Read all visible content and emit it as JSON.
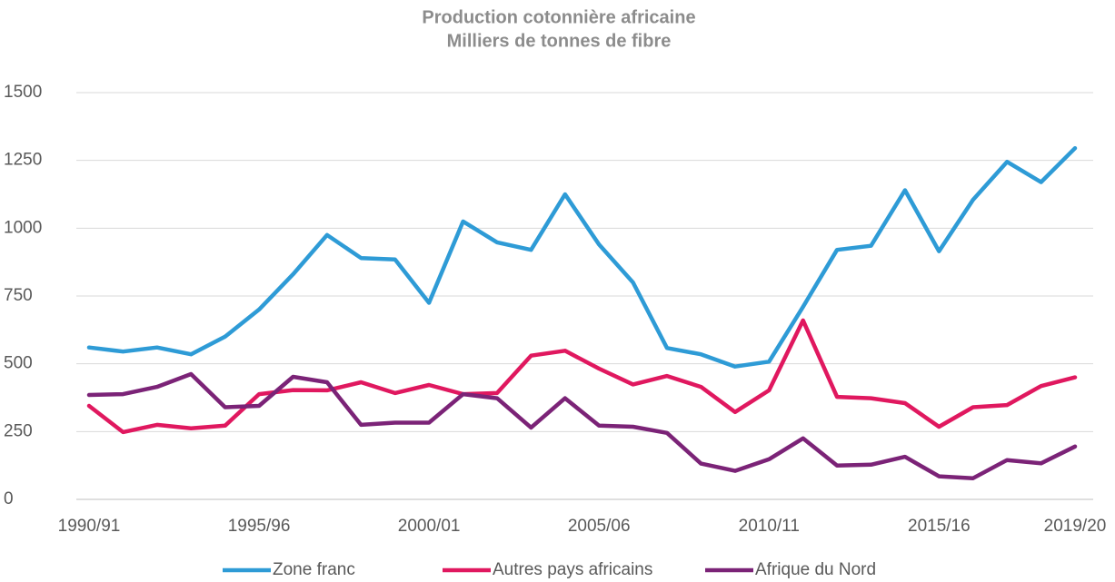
{
  "chart_data": {
    "type": "line",
    "title": "Production cotonnière africaine",
    "subtitle": "Milliers de tonnes de fibre",
    "categories": [
      "1990/91",
      null,
      null,
      null,
      null,
      "1995/96",
      null,
      null,
      null,
      null,
      "2000/01",
      null,
      null,
      null,
      null,
      "2005/06",
      null,
      null,
      null,
      null,
      "2010/11",
      null,
      null,
      null,
      null,
      "2015/16",
      null,
      null,
      null,
      "2019/20"
    ],
    "series": [
      {
        "name": "Zone franc",
        "color": "#2e9bd6",
        "values": [
          560,
          545,
          560,
          535,
          600,
          700,
          830,
          975,
          890,
          885,
          725,
          1025,
          948,
          920,
          1125,
          940,
          800,
          558,
          535,
          490,
          508,
          710,
          920,
          935,
          1140,
          915,
          1105,
          1245,
          1170,
          1295
        ]
      },
      {
        "name": "Autres pays africains",
        "color": "#e0185f",
        "values": [
          345,
          248,
          275,
          262,
          272,
          388,
          403,
          402,
          432,
          392,
          422,
          388,
          392,
          530,
          548,
          482,
          424,
          455,
          415,
          322,
          402,
          660,
          378,
          373,
          355,
          268,
          340,
          348,
          418,
          450
        ]
      },
      {
        "name": "Afrique du Nord",
        "color": "#7b2377",
        "values": [
          385,
          388,
          415,
          462,
          340,
          345,
          452,
          432,
          275,
          283,
          283,
          388,
          373,
          265,
          373,
          272,
          268,
          245,
          132,
          105,
          148,
          225,
          125,
          128,
          157,
          85,
          78,
          145,
          133,
          195
        ]
      }
    ],
    "ylim": [
      0,
      1500
    ],
    "yticks": [
      0,
      250,
      500,
      750,
      1000,
      1250,
      1500
    ],
    "grid": true,
    "legend": "bottom"
  }
}
